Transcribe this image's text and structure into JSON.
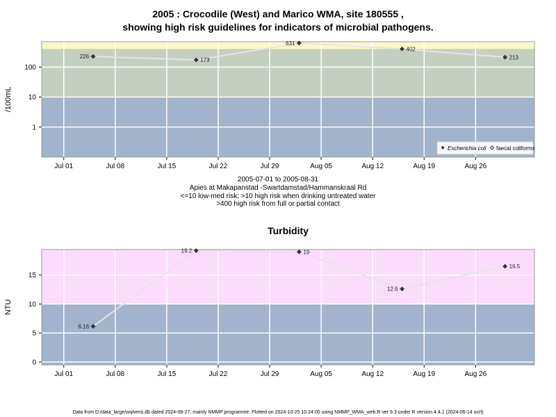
{
  "page": {
    "title_line1": "2005 : Crocodile (West) and Marico WMA, site 180555 ,",
    "title_line2": "showing high risk guidelines for indicators of microbial pathogens.",
    "note_daterange": "2005-07-01 to 2005-08-31",
    "note_location": "Apies at Makapanstad -Swartdamstad/Hammanskraal Rd",
    "note_risk1": "<=10 low-med risk; >10 high risk when drinking untreated water",
    "note_risk2": ">400 high risk from full or partial contact",
    "footer": "Data from D:/data_large/wq/wms.db dated 2024-08-27, mainly NMMP programme. Plotted on 2024-10-25 10:24:00 using NMMP_WMA_web.R ver 9.3 under R version 4.4.1 (2024-06-14 ucrt)"
  },
  "chart_data": [
    {
      "type": "line",
      "title": "",
      "ylabel": "/100mL",
      "y_scale": "log10",
      "ylim": [
        0.1,
        700
      ],
      "xlim": [
        "2005-06-28",
        "2005-09-03"
      ],
      "x_ticks": [
        "Jul 01",
        "Jul 08",
        "Jul 15",
        "Jul 22",
        "Jul 29",
        "Aug 05",
        "Aug 12",
        "Aug 19",
        "Aug 26"
      ],
      "x_tick_dates": [
        "2005-07-01",
        "2005-07-08",
        "2005-07-15",
        "2005-07-22",
        "2005-07-29",
        "2005-08-05",
        "2005-08-12",
        "2005-08-19",
        "2005-08-26"
      ],
      "y_ticks": [
        "1",
        "10",
        "100"
      ],
      "y_tick_values": [
        1,
        10,
        100
      ],
      "grid": true,
      "bands": [
        {
          "from": 0.1,
          "to": 10,
          "color": "#a2b3cc"
        },
        {
          "from": 10,
          "to": 400,
          "color": "#c5cfc1"
        },
        {
          "from": 400,
          "to": 700,
          "color": "#fbf8c8"
        }
      ],
      "series": [
        {
          "name": "Escherichia coli",
          "marker": "filled-diamond",
          "x": [
            "2005-07-05",
            "2005-07-19",
            "2005-08-02",
            "2005-08-16",
            "2005-08-30"
          ],
          "values": [
            226,
            173,
            631,
            402,
            213
          ],
          "labels": [
            "226",
            "173",
            "631",
            "402",
            "213"
          ]
        }
      ],
      "legend": {
        "placement": "bottom-right",
        "entries": [
          "Escherichia coli",
          "faecal coliforms"
        ]
      }
    },
    {
      "type": "line",
      "title": "Turbidity",
      "ylabel": "NTU",
      "ylim": [
        -0.5,
        19.4
      ],
      "xlim": [
        "2005-06-28",
        "2005-09-03"
      ],
      "x_ticks": [
        "Jul 01",
        "Jul 08",
        "Jul 15",
        "Jul 22",
        "Jul 29",
        "Aug 05",
        "Aug 12",
        "Aug 19",
        "Aug 26"
      ],
      "x_tick_dates": [
        "2005-07-01",
        "2005-07-08",
        "2005-07-15",
        "2005-07-22",
        "2005-07-29",
        "2005-08-05",
        "2005-08-12",
        "2005-08-19",
        "2005-08-26"
      ],
      "y_ticks": [
        "0",
        "5",
        "10",
        "15"
      ],
      "y_tick_values": [
        0,
        5,
        10,
        15
      ],
      "grid": true,
      "bands": [
        {
          "from": -0.5,
          "to": 10,
          "color": "#a2b3cc"
        },
        {
          "from": 10,
          "to": 19.4,
          "color": "#fcdcfc"
        }
      ],
      "series": [
        {
          "marker": "filled-diamond",
          "x": [
            "2005-07-05",
            "2005-07-19",
            "2005-08-02",
            "2005-08-16",
            "2005-08-30"
          ],
          "values": [
            6.16,
            19.2,
            19,
            12.6,
            16.5
          ],
          "labels": [
            "6.16",
            "19.2",
            "19",
            "12.6",
            "16.5"
          ]
        }
      ]
    }
  ]
}
